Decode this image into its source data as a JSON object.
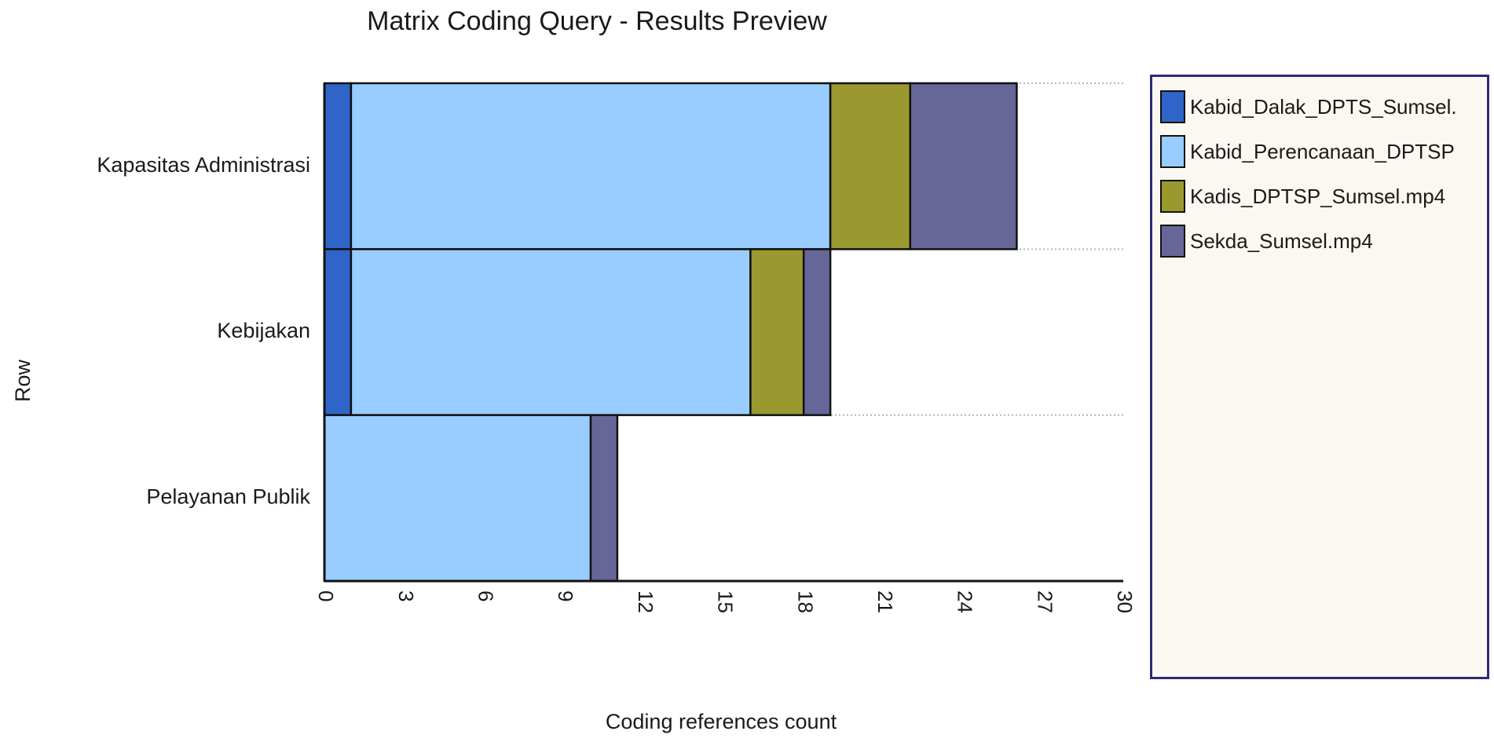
{
  "chart_data": {
    "type": "bar",
    "orientation": "horizontal",
    "stacked": true,
    "title": "Matrix Coding Query - Results Preview",
    "xlabel": "Coding references count",
    "ylabel": "Row",
    "xlim": [
      0,
      30
    ],
    "x_ticks": [
      "0",
      "3",
      "6",
      "9",
      "12",
      "15",
      "18",
      "21",
      "24",
      "27",
      "30"
    ],
    "categories": [
      "Kapasitas Administrasi",
      "Kebijakan",
      "Pelayanan Publik"
    ],
    "series": [
      {
        "name": "Kabid_Dalak_DPTS_Sumsel.",
        "color": "#2f64c8",
        "values": [
          1,
          1,
          0
        ]
      },
      {
        "name": "Kabid_Perencanaan_DPTSP",
        "color": "#99ccff",
        "values": [
          18,
          15,
          10
        ]
      },
      {
        "name": "Kadis_DPTSP_Sumsel.mp4",
        "color": "#99992f",
        "values": [
          3,
          2,
          0
        ]
      },
      {
        "name": "Sekda_Sumsel.mp4",
        "color": "#666699",
        "values": [
          4,
          1,
          1
        ]
      }
    ],
    "grid": "horizontal dotted lines at category boundaries",
    "legend_position": "right"
  }
}
